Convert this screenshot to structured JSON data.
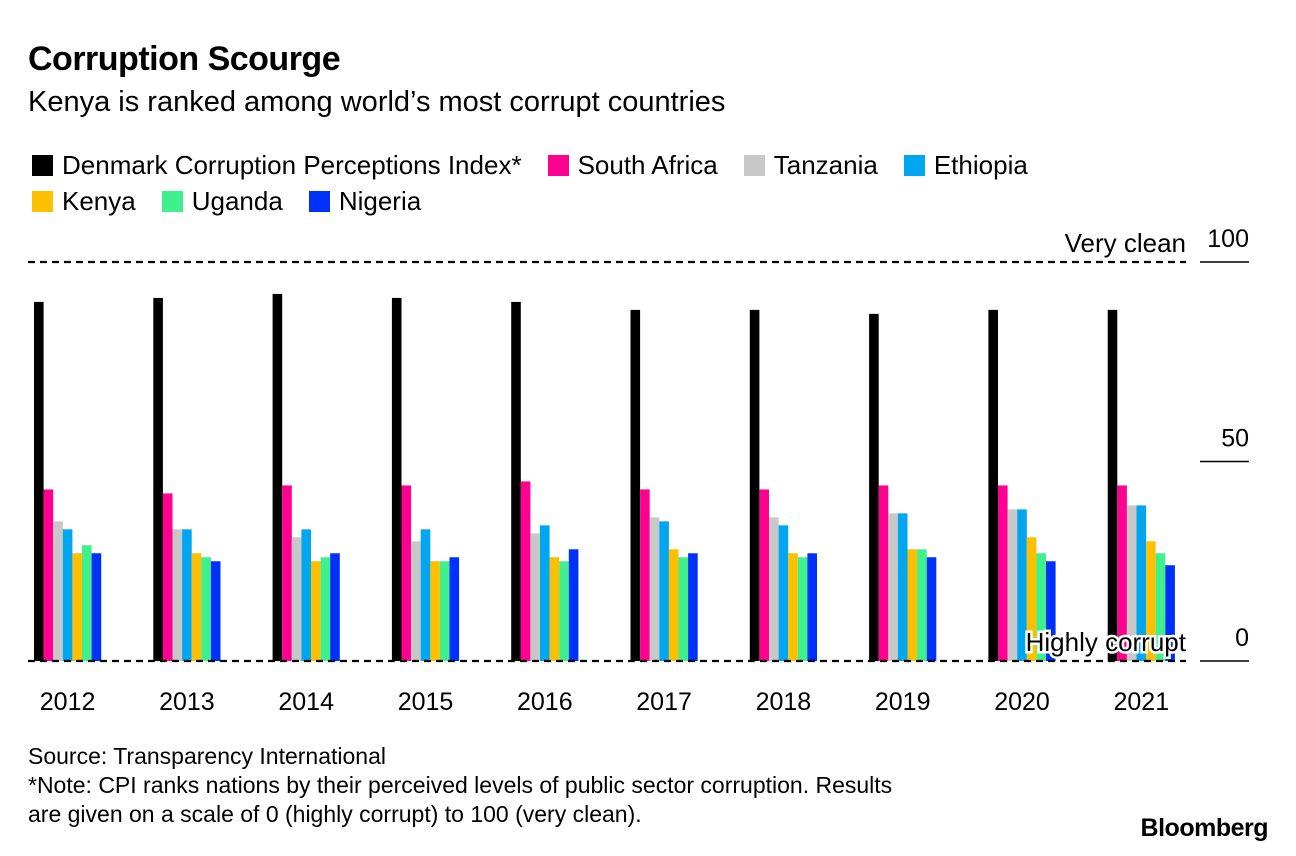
{
  "header": {
    "title": "Corruption Scourge",
    "subtitle": "Kenya is ranked among world’s most corrupt countries"
  },
  "footer": {
    "source": "Source: Transparency International",
    "note_line1": "*Note: CPI ranks nations by their perceived levels of public sector corruption. Results",
    "note_line2": "are given on a scale of 0 (highly corrupt) to 100 (very clean)."
  },
  "brand": {
    "logo": "Bloomberg"
  },
  "chart_data": {
    "type": "bar",
    "categories": [
      "2012",
      "2013",
      "2014",
      "2015",
      "2016",
      "2017",
      "2018",
      "2019",
      "2020",
      "2021"
    ],
    "series": [
      {
        "name": "Denmark Corruption Perceptions Index*",
        "color": "#000000",
        "values": [
          90,
          91,
          92,
          91,
          90,
          88,
          88,
          87,
          88,
          88
        ]
      },
      {
        "name": "South Africa",
        "color": "#ff0090",
        "values": [
          43,
          42,
          44,
          44,
          45,
          43,
          43,
          44,
          44,
          44
        ]
      },
      {
        "name": "Tanzania",
        "color": "#c8c8c8",
        "values": [
          35,
          33,
          31,
          30,
          32,
          36,
          36,
          37,
          38,
          39
        ]
      },
      {
        "name": "Ethiopia",
        "color": "#00a7f0",
        "values": [
          33,
          33,
          33,
          33,
          34,
          35,
          34,
          37,
          38,
          39
        ]
      },
      {
        "name": "Kenya",
        "color": "#fcc000",
        "values": [
          27,
          27,
          25,
          25,
          26,
          28,
          27,
          28,
          31,
          30
        ]
      },
      {
        "name": "Uganda",
        "color": "#3ff08c",
        "values": [
          29,
          26,
          26,
          25,
          25,
          26,
          26,
          28,
          27,
          27
        ]
      },
      {
        "name": "Nigeria",
        "color": "#0031fa",
        "values": [
          27,
          25,
          27,
          26,
          28,
          27,
          27,
          26,
          25,
          24
        ]
      }
    ],
    "ylim": [
      0,
      100
    ],
    "y_ticks": [
      "0",
      "50",
      "100"
    ],
    "y_axis_side": "right",
    "reference_lines": [
      {
        "value": 100,
        "label": "Very clean",
        "style": "dashed"
      },
      {
        "value": 0,
        "label": "Highly corrupt",
        "style": "dashed"
      }
    ],
    "legend_placement": "top",
    "grid": false
  }
}
